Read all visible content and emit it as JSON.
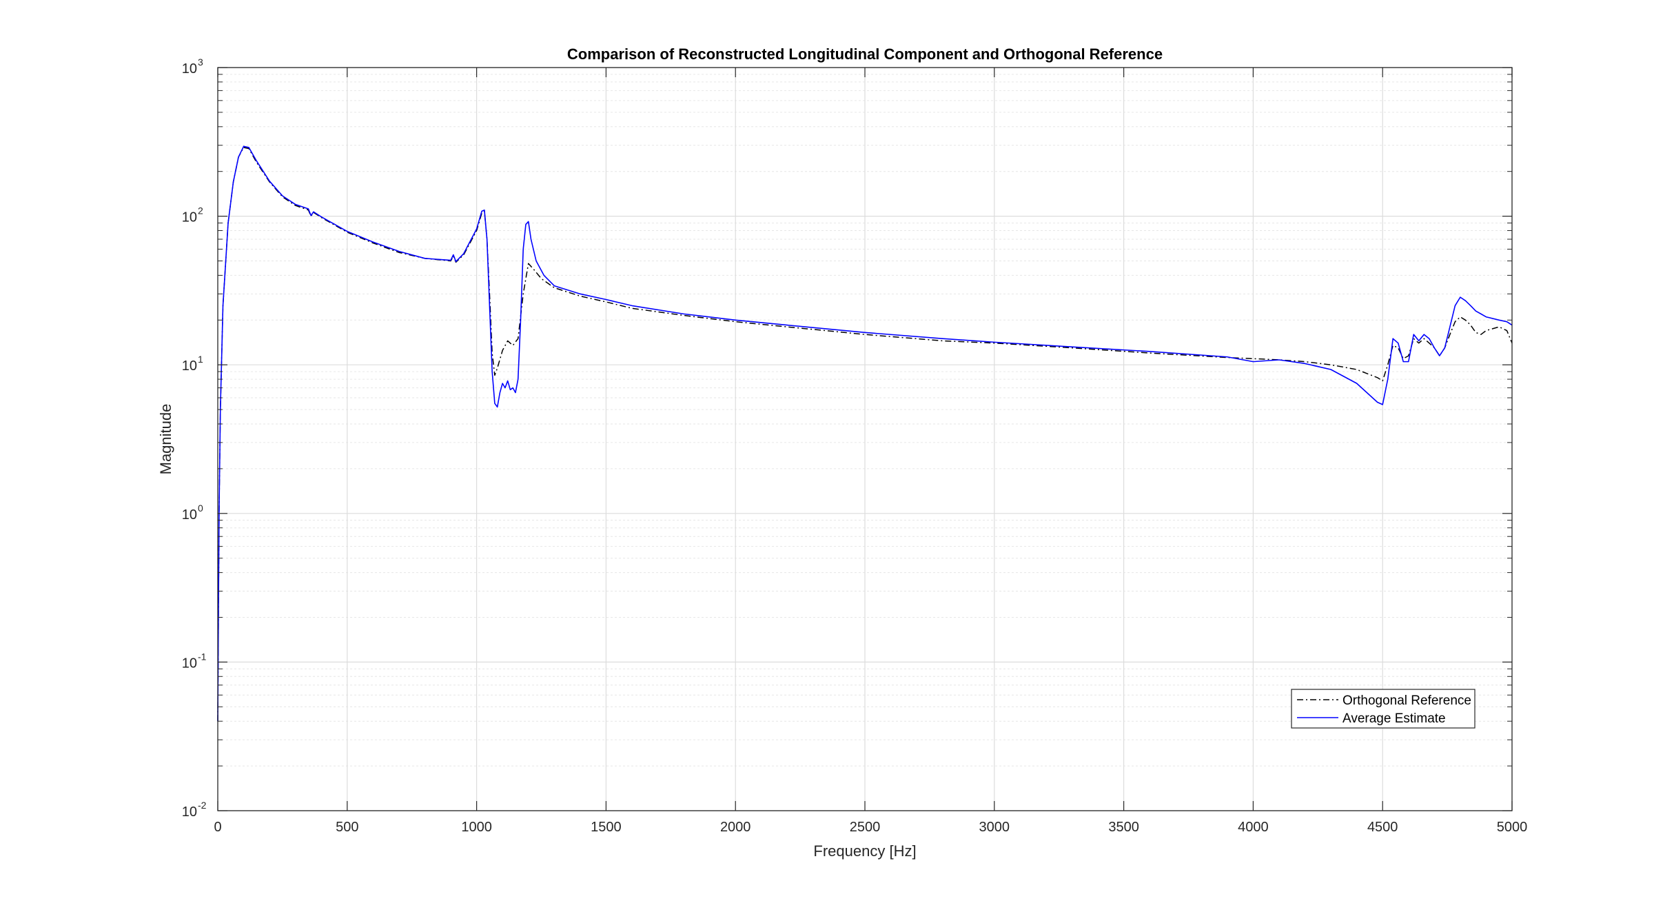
{
  "chart_data": {
    "type": "line",
    "title": "Comparison of Reconstructed Longitudinal Component and Orthogonal Reference",
    "xlabel": "Frequency [Hz]",
    "ylabel": "Magnitude",
    "xlim": [
      0,
      5000
    ],
    "ylim": [
      0.01,
      1000
    ],
    "yscale": "log",
    "grid": true,
    "minor_grid_y": true,
    "legend_position": "bottom-right",
    "x_ticks": [
      "0",
      "500",
      "1000",
      "1500",
      "2000",
      "2500",
      "3000",
      "3500",
      "4000",
      "4500",
      "5000"
    ],
    "y_ticks": [
      {
        "base": "10",
        "exp": "-2",
        "value": 0.01
      },
      {
        "base": "10",
        "exp": "-1",
        "value": 0.1
      },
      {
        "base": "10",
        "exp": "0",
        "value": 1
      },
      {
        "base": "10",
        "exp": "1",
        "value": 10
      },
      {
        "base": "10",
        "exp": "2",
        "value": 100
      },
      {
        "base": "10",
        "exp": "3",
        "value": 1000
      }
    ],
    "series": [
      {
        "name": "Orthogonal Reference",
        "color": "#000000",
        "style": "dashdot",
        "x": [
          0,
          5,
          10,
          20,
          40,
          60,
          80,
          100,
          120,
          150,
          200,
          250,
          300,
          350,
          360,
          370,
          400,
          500,
          600,
          700,
          800,
          900,
          910,
          920,
          950,
          1000,
          1020,
          1030,
          1040,
          1050,
          1060,
          1070,
          1080,
          1100,
          1120,
          1140,
          1160,
          1180,
          1200,
          1220,
          1250,
          1300,
          1400,
          1500,
          1600,
          1800,
          2000,
          2200,
          2500,
          2800,
          3000,
          3300,
          3600,
          3900,
          4000,
          4100,
          4200,
          4300,
          4400,
          4480,
          4500,
          4520,
          4540,
          4560,
          4580,
          4600,
          4620,
          4640,
          4660,
          4680,
          4700,
          4720,
          4740,
          4760,
          4780,
          4800,
          4820,
          4840,
          4860,
          4880,
          4900,
          4950,
          4980,
          5000
        ],
        "y": [
          0.04,
          1.0,
          5,
          25,
          90,
          170,
          250,
          290,
          285,
          230,
          170,
          135,
          118,
          110,
          100,
          106,
          98,
          78,
          66,
          57,
          52,
          50,
          54,
          49,
          55,
          80,
          105,
          108,
          70,
          30,
          12,
          8.5,
          9.5,
          12.5,
          14.5,
          13.5,
          15,
          30,
          48,
          44,
          38,
          33,
          29,
          26.5,
          24,
          21.5,
          19.5,
          18,
          16,
          14.5,
          14,
          13,
          12,
          11.2,
          11,
          10.8,
          10.5,
          10,
          9.3,
          8.2,
          7.8,
          10,
          13.5,
          13,
          11,
          11.5,
          15,
          14,
          15,
          14,
          13,
          11.5,
          13,
          16,
          19.5,
          21,
          20,
          18.5,
          16.5,
          16,
          17,
          18,
          17,
          14
        ]
      },
      {
        "name": "Average Estimate",
        "color": "#0000ff",
        "style": "solid",
        "x": [
          0,
          5,
          10,
          20,
          40,
          60,
          80,
          100,
          120,
          150,
          200,
          250,
          300,
          350,
          360,
          370,
          400,
          500,
          600,
          700,
          800,
          900,
          910,
          920,
          950,
          1000,
          1020,
          1030,
          1040,
          1050,
          1060,
          1070,
          1080,
          1090,
          1100,
          1110,
          1120,
          1130,
          1140,
          1150,
          1160,
          1170,
          1180,
          1190,
          1200,
          1210,
          1230,
          1260,
          1300,
          1400,
          1500,
          1600,
          1800,
          2000,
          2200,
          2500,
          2800,
          3000,
          3300,
          3600,
          3900,
          4000,
          4100,
          4200,
          4300,
          4400,
          4480,
          4500,
          4520,
          4540,
          4560,
          4580,
          4600,
          4620,
          4640,
          4660,
          4680,
          4700,
          4720,
          4740,
          4760,
          4780,
          4800,
          4820,
          4840,
          4860,
          4880,
          4900,
          4950,
          4980,
          5000
        ],
        "y": [
          0.04,
          1.0,
          5,
          25,
          90,
          170,
          250,
          295,
          290,
          235,
          172,
          137,
          120,
          112,
          101,
          107,
          99,
          79,
          67,
          58,
          52,
          50.5,
          55,
          49.5,
          56,
          82,
          108,
          110,
          70,
          25,
          9,
          5.5,
          5.2,
          6.5,
          7.5,
          7,
          7.8,
          6.8,
          7,
          6.5,
          8,
          20,
          60,
          88,
          92,
          70,
          50,
          40,
          34,
          30,
          27.5,
          25,
          22,
          20,
          18.5,
          16.5,
          15,
          14.2,
          13.2,
          12.3,
          11.3,
          10.5,
          10.8,
          10.2,
          9.3,
          7.5,
          5.6,
          5.4,
          8,
          15,
          14,
          10.5,
          10.5,
          16,
          14.5,
          16,
          15,
          13,
          11.5,
          13,
          18,
          25,
          28.5,
          27,
          25,
          23,
          22,
          21,
          20,
          19.5,
          18.5
        ]
      }
    ]
  }
}
